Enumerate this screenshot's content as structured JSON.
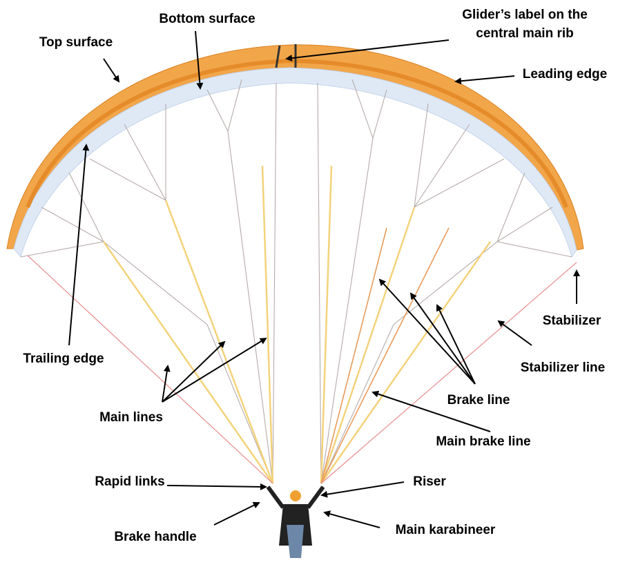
{
  "labels": [
    {
      "lines": [
        "Top surface"
      ]
    },
    {
      "lines": [
        "Bottom surface"
      ]
    },
    {
      "lines": [
        "Glider’s label on the",
        "central main rib"
      ]
    },
    {
      "lines": [
        "Leading edge"
      ]
    },
    {
      "lines": [
        "Trailing edge"
      ]
    },
    {
      "lines": [
        "Stabilizer"
      ]
    },
    {
      "lines": [
        "Stabilizer line"
      ]
    },
    {
      "lines": [
        "Main lines"
      ]
    },
    {
      "lines": [
        "Brake line"
      ]
    },
    {
      "lines": [
        "Main brake line"
      ]
    },
    {
      "lines": [
        "Rapid links"
      ]
    },
    {
      "lines": [
        "Riser"
      ]
    },
    {
      "lines": [
        "Brake handle"
      ]
    },
    {
      "lines": [
        "Main karabineer"
      ]
    }
  ]
}
